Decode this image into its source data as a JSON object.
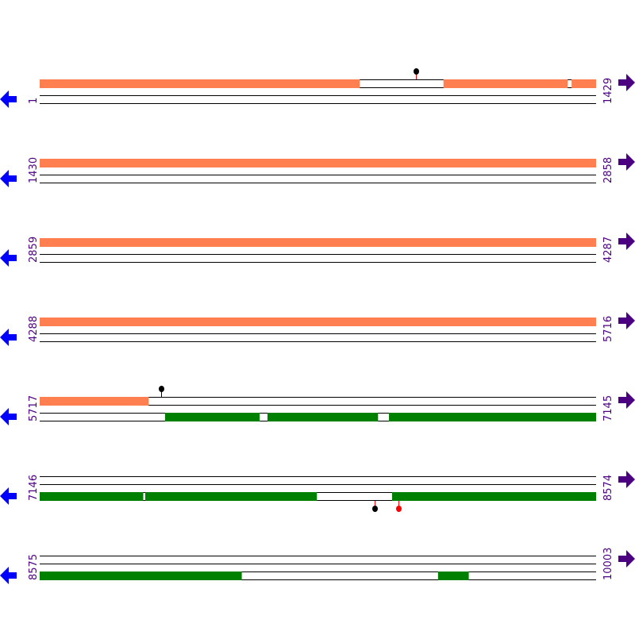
{
  "map": {
    "bp_per_row": 1429,
    "rows": [
      {
        "start_label": "1",
        "end_label": "1429",
        "start": 1,
        "end": 1429
      },
      {
        "start_label": "1430",
        "end_label": "2858",
        "start": 1430,
        "end": 2858
      },
      {
        "start_label": "2859",
        "end_label": "4287",
        "start": 2859,
        "end": 4287
      },
      {
        "start_label": "4288",
        "end_label": "5716",
        "start": 4288,
        "end": 5716
      },
      {
        "start_label": "5717",
        "end_label": "7145",
        "start": 5717,
        "end": 7145
      },
      {
        "start_label": "7146",
        "end_label": "8574",
        "start": 7146,
        "end": 8574
      },
      {
        "start_label": "8575",
        "end_label": "10003",
        "start": 8575,
        "end": 10003
      }
    ],
    "tracks": [
      {
        "strand": "forward",
        "color": "#ff7f50",
        "segments": [
          [
            1,
            822
          ],
          [
            1038,
            1356
          ],
          [
            1367,
            5996
          ]
        ]
      },
      {
        "strand": "reverse",
        "color": "#008000",
        "segments": [
          [
            6039,
            6281
          ],
          [
            6302,
            6585
          ],
          [
            6614,
            7411
          ],
          [
            7417,
            7857
          ],
          [
            8051,
            9093
          ],
          [
            9598,
            9676
          ]
        ]
      }
    ],
    "markers": [
      {
        "position": 967,
        "track": 0,
        "direction": "up",
        "stem_color": "#ff0000",
        "head_color": "#000000"
      },
      {
        "position": 6029,
        "track": 0,
        "direction": "up",
        "stem_color": "#000000",
        "head_color": "#000000"
      },
      {
        "position": 8006,
        "track": 1,
        "direction": "down",
        "stem_color": "#ff0000",
        "head_color": "#000000"
      },
      {
        "position": 8067,
        "track": 1,
        "direction": "down",
        "stem_color": "#ff0000",
        "head_color": "#ff0000"
      }
    ],
    "label_color": "#4b0082",
    "left_arrow_color": "#0000ff",
    "right_arrow_color": "#4b0082",
    "left_arrow_icon": "arrow-left-icon",
    "right_arrow_icon": "arrow-right-icon"
  }
}
